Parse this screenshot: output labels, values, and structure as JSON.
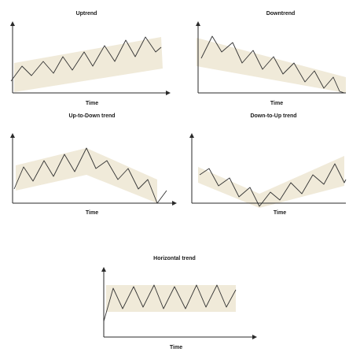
{
  "panels": [
    {
      "id": "uptrend",
      "title": "Uptrend",
      "xlabel": "Time"
    },
    {
      "id": "downtrend",
      "title": "Downtrend",
      "xlabel": "Time"
    },
    {
      "id": "up-to-down",
      "title": "Up-to-Down trend",
      "xlabel": "Time"
    },
    {
      "id": "down-to-up",
      "title": "Down-to-Up trend",
      "xlabel": "Time"
    },
    {
      "id": "horizontal",
      "title": "Horizontal trend",
      "xlabel": "Time"
    }
  ],
  "colors": {
    "band": "#efe9d7",
    "line": "#333333",
    "axis": "#2a2a2a"
  }
}
